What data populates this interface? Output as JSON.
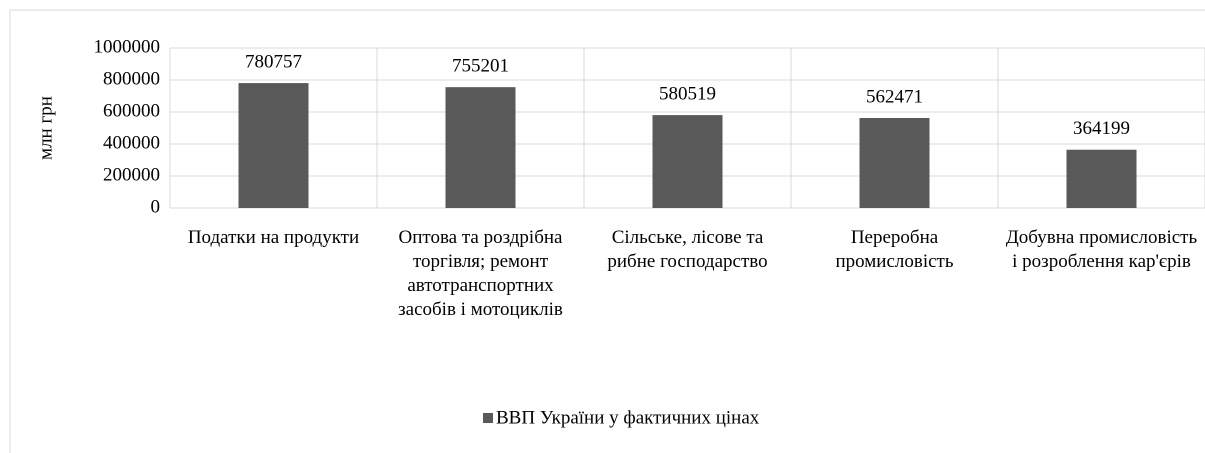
{
  "chart_data": {
    "type": "bar",
    "y_label": "млн грн",
    "categories": [
      "Податки на продукти",
      "Оптова та роздрібна торгівля; ремонт автотранспортних засобів і мотоциклів",
      "Сільське, лісове та рибне господарство",
      "Переробна промисловість",
      "Добувна промисловість і розроблення кар'єрів"
    ],
    "series": [
      {
        "name": "ВВП України у фактичних цінах",
        "color": "#595959",
        "values": [
          780757,
          755201,
          580519,
          562471,
          364199
        ]
      }
    ],
    "ylim": [
      0,
      1000000
    ],
    "yticks": [
      0,
      200000,
      400000,
      600000,
      800000,
      1000000
    ],
    "grid": true,
    "legend": "bottom"
  }
}
